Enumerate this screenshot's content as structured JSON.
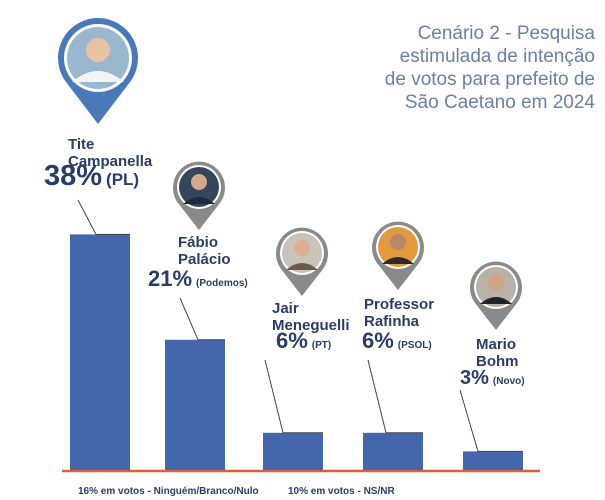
{
  "title_lines": [
    "Cenário 2 - Pesquisa",
    "estimulada de intenção",
    "de votos para prefeito de",
    "São Caetano em 2024"
  ],
  "chart_data": {
    "type": "bar",
    "title": "Cenário 2 - Pesquisa estimulada de intenção de votos para prefeito de São Caetano em 2024",
    "categories": [
      "Tite Campanella",
      "Fábio Palácio",
      "Jair Meneguelli",
      "Professor Rafinha",
      "Mario Bohm"
    ],
    "values": [
      38,
      21,
      6,
      6,
      3
    ],
    "ylim": [
      0,
      40
    ],
    "bar_color": "#4466aa",
    "axis_color": "#d9603a",
    "candidates": [
      {
        "name_lines": [
          "Tite",
          "Campanella"
        ],
        "pct_label": "38%",
        "party": "(PL)",
        "avatar": "person-icon"
      },
      {
        "name_lines": [
          "Fábio",
          "Palácio"
        ],
        "pct_label": "21%",
        "party": "(Podemos)",
        "avatar": "person-icon"
      },
      {
        "name_lines": [
          "Jair",
          "Meneguelli"
        ],
        "pct_label": "6%",
        "party": "(PT)",
        "avatar": "person-icon"
      },
      {
        "name_lines": [
          "Professor",
          "Rafinha"
        ],
        "pct_label": "6%",
        "party": "(PSOL)",
        "avatar": "person-icon"
      },
      {
        "name_lines": [
          "Mario",
          "Bohm"
        ],
        "pct_label": "3%",
        "party": "(Novo)",
        "avatar": "person-icon"
      }
    ]
  },
  "footnotes": [
    "16% em votos - Ninguém/Branco/Nulo",
    "10% em votos - NS/NR"
  ],
  "pin_colors": {
    "blue": "#4a79b8",
    "gray": "#8a8a8a"
  }
}
